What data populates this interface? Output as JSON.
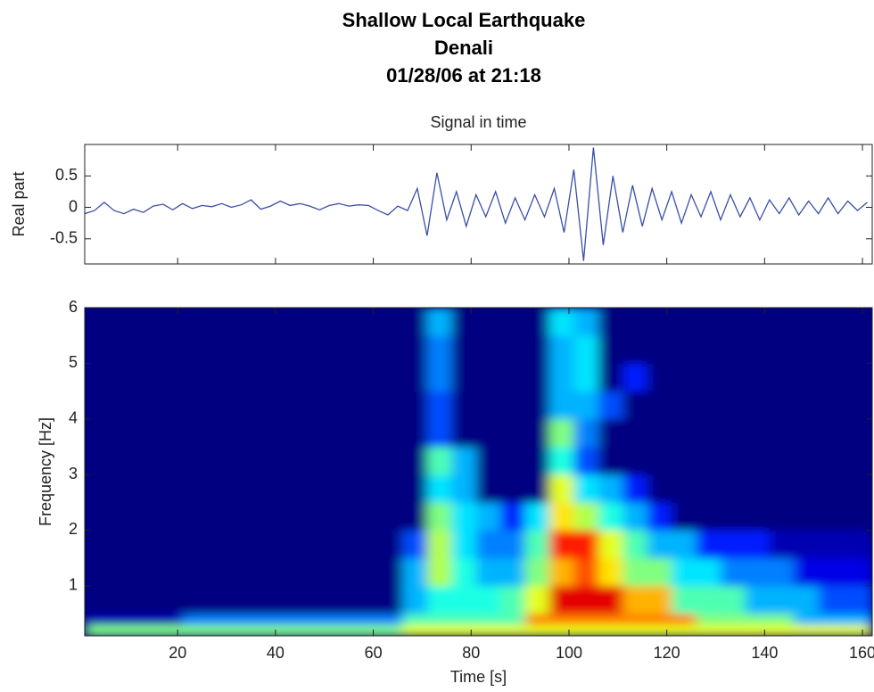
{
  "suptitle": [
    "Shallow Local Earthquake",
    "Denali",
    "01/28/06 at 21:18"
  ],
  "chart_data": [
    {
      "type": "line",
      "title": "Signal in time",
      "ylabel": "Real part",
      "color": "#3a4ea6",
      "x": [
        1,
        3,
        5,
        7,
        9,
        11,
        13,
        15,
        17,
        19,
        21,
        23,
        25,
        27,
        29,
        31,
        33,
        35,
        37,
        39,
        41,
        43,
        45,
        47,
        49,
        51,
        53,
        55,
        57,
        59,
        61,
        63,
        65,
        67,
        69,
        71,
        73,
        75,
        77,
        79,
        81,
        83,
        85,
        87,
        89,
        91,
        93,
        95,
        97,
        99,
        101,
        103,
        105,
        107,
        109,
        111,
        113,
        115,
        117,
        119,
        121,
        123,
        125,
        127,
        129,
        131,
        133,
        135,
        137,
        139,
        141,
        143,
        145,
        147,
        149,
        151,
        153,
        155,
        157,
        159,
        161
      ],
      "values": [
        -0.1,
        -0.05,
        0.08,
        -0.05,
        -0.1,
        -0.03,
        -0.08,
        0.02,
        0.05,
        -0.04,
        0.06,
        -0.02,
        0.03,
        0.01,
        0.06,
        0.0,
        0.04,
        0.12,
        -0.03,
        0.02,
        0.1,
        0.03,
        0.06,
        0.02,
        -0.04,
        0.03,
        0.06,
        0.02,
        0.04,
        0.03,
        -0.05,
        -0.12,
        0.02,
        -0.05,
        0.3,
        -0.45,
        0.55,
        -0.2,
        0.25,
        -0.3,
        0.2,
        -0.15,
        0.25,
        -0.25,
        0.15,
        -0.2,
        0.2,
        -0.15,
        0.3,
        -0.4,
        0.6,
        -0.85,
        0.95,
        -0.6,
        0.5,
        -0.4,
        0.35,
        -0.3,
        0.3,
        -0.2,
        0.25,
        -0.25,
        0.2,
        -0.15,
        0.25,
        -0.2,
        0.2,
        -0.15,
        0.15,
        -0.2,
        0.12,
        -0.1,
        0.15,
        -0.12,
        0.1,
        -0.1,
        0.15,
        -0.1,
        0.1,
        -0.05,
        0.08
      ],
      "xlim": [
        1,
        162
      ],
      "ylim": [
        -0.9,
        1
      ],
      "xticks": [
        20,
        40,
        60,
        80,
        100,
        120,
        140,
        160
      ],
      "yticks": [
        -0.5,
        0,
        0.5
      ]
    },
    {
      "type": "heatmap",
      "xlabel": "Time [s]",
      "ylabel": "Frequency [Hz]",
      "colormap": "jet",
      "xbins": [
        1,
        6,
        11,
        16,
        21,
        26,
        31,
        36,
        41,
        46,
        51,
        56,
        61,
        66,
        71,
        76,
        81,
        86,
        91,
        96,
        101,
        106,
        111,
        116,
        121,
        126,
        131,
        136,
        141,
        146,
        151,
        156,
        162
      ],
      "ybins": [
        0.1,
        0.3,
        0.5,
        1,
        1.5,
        2,
        2.5,
        3,
        3.5,
        4,
        4.5,
        5,
        5.5,
        6
      ],
      "z": [
        [
          0.5,
          0.5,
          0.5,
          0.5,
          0.5,
          0.5,
          0.5,
          0.5,
          0.5,
          0.5,
          0.5,
          0.5,
          0.5,
          0.6,
          0.6,
          0.6,
          0.6,
          0.6,
          0.6,
          0.6,
          0.6,
          0.6,
          0.6,
          0.6,
          0.6,
          0.6,
          0.6,
          0.6,
          0.6,
          0.6,
          0.6,
          0.6
        ],
        [
          0.05,
          0.05,
          0.05,
          0.05,
          0.25,
          0.25,
          0.25,
          0.25,
          0.25,
          0.25,
          0.25,
          0.25,
          0.25,
          0.45,
          0.45,
          0.45,
          0.45,
          0.45,
          0.75,
          0.75,
          0.75,
          0.75,
          0.75,
          0.75,
          0.75,
          0.5,
          0.5,
          0.5,
          0.5,
          0.3,
          0.3,
          0.3
        ],
        [
          0,
          0,
          0,
          0,
          0,
          0,
          0,
          0,
          0,
          0,
          0,
          0,
          0,
          0.3,
          0.4,
          0.4,
          0.4,
          0.45,
          0.6,
          0.9,
          0.9,
          0.9,
          0.7,
          0.7,
          0.45,
          0.45,
          0.45,
          0.3,
          0.3,
          0.3,
          0.2,
          0.2
        ],
        [
          0,
          0,
          0,
          0,
          0,
          0,
          0,
          0,
          0,
          0,
          0,
          0,
          0,
          0.3,
          0.55,
          0.4,
          0.3,
          0.3,
          0.5,
          0.7,
          0.8,
          0.65,
          0.5,
          0.5,
          0.35,
          0.35,
          0.25,
          0.25,
          0.25,
          0.1,
          0.1,
          0.1
        ],
        [
          0,
          0,
          0,
          0,
          0,
          0,
          0,
          0,
          0,
          0,
          0,
          0,
          0,
          0.2,
          0.55,
          0.35,
          0.25,
          0.25,
          0.45,
          0.85,
          0.85,
          0.6,
          0.45,
          0.3,
          0.3,
          0.15,
          0.15,
          0.15,
          0.05,
          0.05,
          0.05,
          0.05
        ],
        [
          0,
          0,
          0,
          0,
          0,
          0,
          0,
          0,
          0,
          0,
          0,
          0,
          0,
          0,
          0.5,
          0.35,
          0.3,
          0.15,
          0.35,
          0.65,
          0.55,
          0.4,
          0.3,
          0.15,
          0,
          0,
          0,
          0,
          0,
          0,
          0,
          0
        ],
        [
          0,
          0,
          0,
          0,
          0,
          0,
          0,
          0,
          0,
          0,
          0,
          0,
          0,
          0,
          0.35,
          0.3,
          0,
          0,
          0,
          0.6,
          0.35,
          0.3,
          0.15,
          0,
          0,
          0,
          0,
          0,
          0,
          0,
          0,
          0
        ],
        [
          0,
          0,
          0,
          0,
          0,
          0,
          0,
          0,
          0,
          0,
          0,
          0,
          0,
          0,
          0.45,
          0.3,
          0,
          0,
          0,
          0.4,
          0.2,
          0,
          0,
          0,
          0,
          0,
          0,
          0,
          0,
          0,
          0,
          0
        ],
        [
          0,
          0,
          0,
          0,
          0,
          0,
          0,
          0,
          0,
          0,
          0,
          0,
          0,
          0,
          0.2,
          0,
          0,
          0,
          0,
          0.5,
          0.25,
          0,
          0,
          0,
          0,
          0,
          0,
          0,
          0,
          0,
          0,
          0
        ],
        [
          0,
          0,
          0,
          0,
          0,
          0,
          0,
          0,
          0,
          0,
          0,
          0,
          0,
          0,
          0.2,
          0,
          0,
          0,
          0,
          0.3,
          0.3,
          0.2,
          0,
          0,
          0,
          0,
          0,
          0,
          0,
          0,
          0,
          0
        ],
        [
          0,
          0,
          0,
          0,
          0,
          0,
          0,
          0,
          0,
          0,
          0,
          0,
          0,
          0,
          0.25,
          0,
          0,
          0,
          0,
          0.3,
          0.35,
          0,
          0.15,
          0,
          0,
          0,
          0,
          0,
          0,
          0,
          0,
          0
        ],
        [
          0,
          0,
          0,
          0,
          0,
          0,
          0,
          0,
          0,
          0,
          0,
          0,
          0,
          0,
          0.25,
          0,
          0,
          0,
          0,
          0.3,
          0.35,
          0,
          0,
          0,
          0,
          0,
          0,
          0,
          0,
          0,
          0,
          0
        ],
        [
          0,
          0,
          0,
          0,
          0,
          0,
          0,
          0,
          0,
          0,
          0,
          0,
          0,
          0,
          0.3,
          0,
          0,
          0,
          0,
          0.35,
          0.3,
          0,
          0,
          0,
          0,
          0,
          0,
          0,
          0,
          0,
          0,
          0
        ]
      ],
      "xlim": [
        1,
        162
      ],
      "ylim": [
        0.1,
        6
      ],
      "xticks": [
        20,
        40,
        60,
        80,
        100,
        120,
        140,
        160
      ],
      "yticks": [
        1,
        2,
        3,
        4,
        5,
        6
      ]
    }
  ]
}
